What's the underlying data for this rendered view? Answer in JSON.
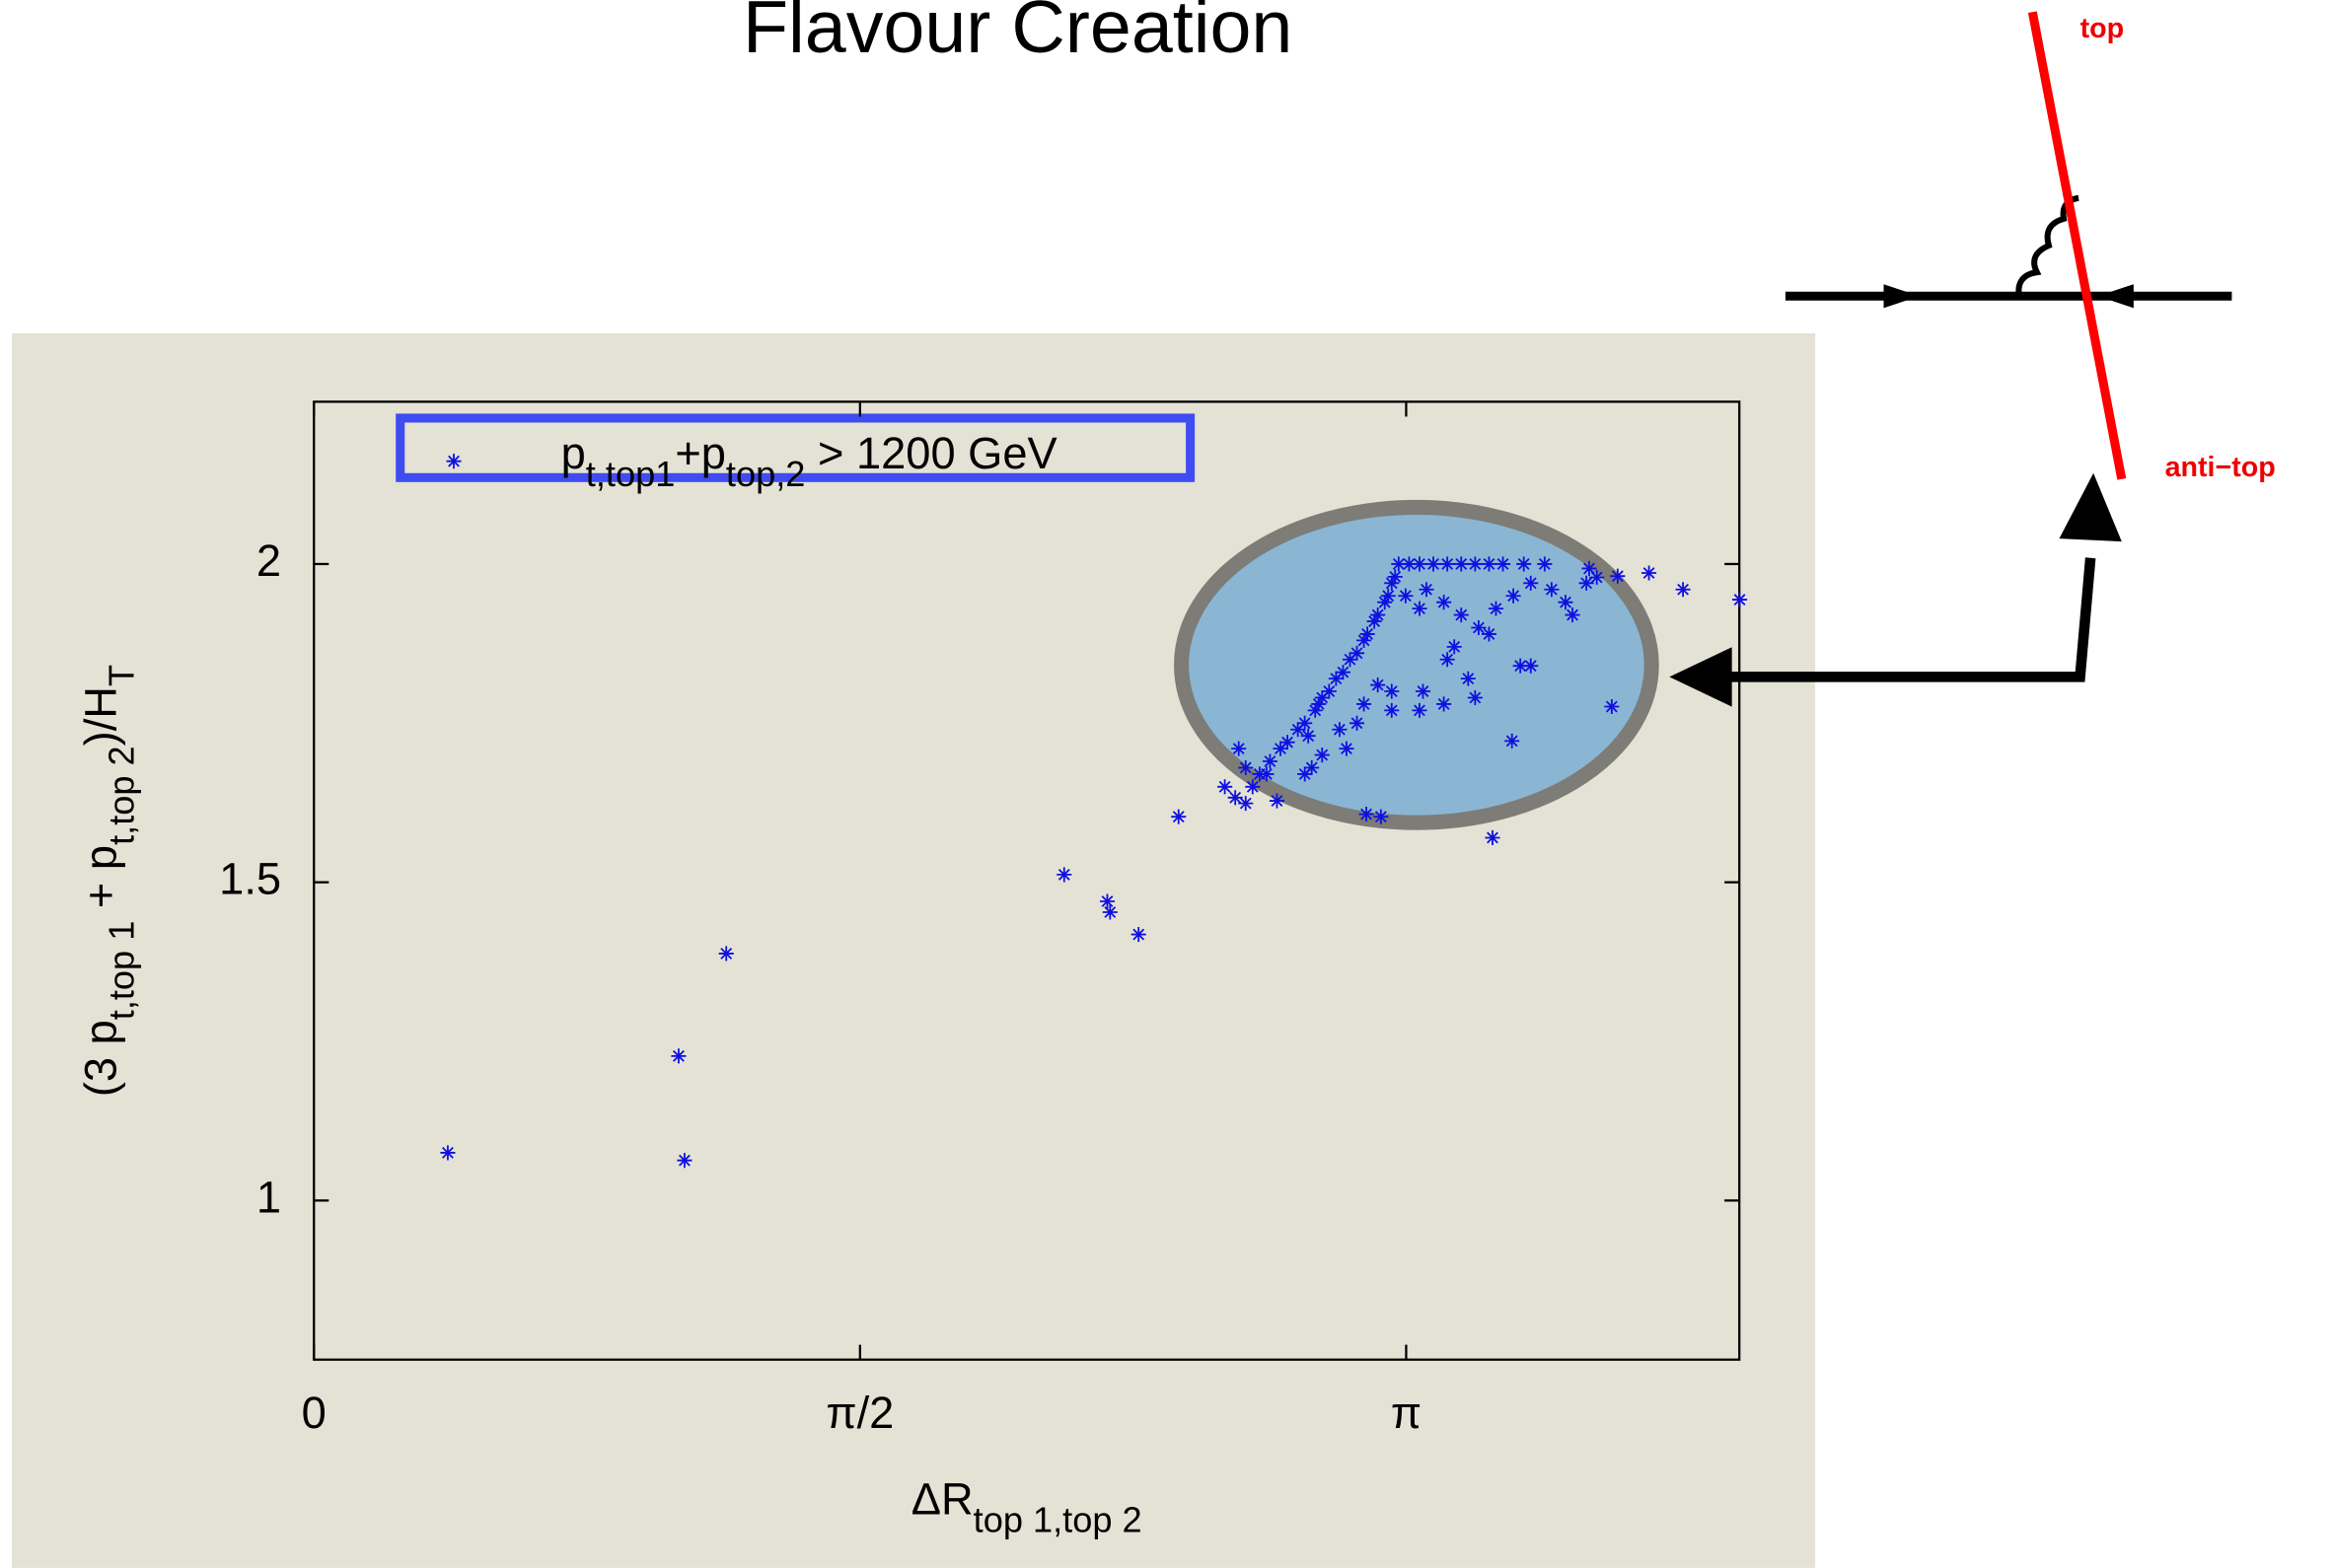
{
  "chart_data": {
    "type": "scatter",
    "title": "Flavour Creation",
    "xlabel": [
      {
        "text": "ΔR"
      },
      {
        "text": "top 1,top 2",
        "sub": true
      }
    ],
    "ylabel": [
      {
        "text": "(3 p"
      },
      {
        "text": "t,top 1",
        "sub": true
      },
      {
        "text": " + p"
      },
      {
        "text": "t,top 2",
        "sub": true
      },
      {
        "text": ")/H"
      },
      {
        "text": "T",
        "sub": true
      }
    ],
    "xlim": [
      0,
      4.1
    ],
    "ylim": [
      0.75,
      2.255
    ],
    "xticks": [
      0,
      {
        "value": 1.5708,
        "label": "π/2"
      },
      {
        "value": 3.1416,
        "label": "π"
      }
    ],
    "yticks": [
      1,
      1.5,
      2
    ],
    "x": [
      0.385,
      1.049,
      1.066,
      1.186,
      2.158,
      2.282,
      2.29,
      2.372,
      2.487,
      2.65,
      2.68,
      2.77,
      3.027,
      3.069,
      3.39,
      3.446,
      3.733,
      3.938,
      4.101,
      3.84,
      3.75,
      3.668,
      3.69,
      2.72,
      2.75,
      2.78,
      2.74,
      2.8,
      2.83,
      2.85,
      2.86,
      2.88,
      2.9,
      2.92,
      2.89,
      2.94,
      2.96,
      2.98,
      3.0,
      3.02,
      3.03,
      3.05,
      3.06,
      3.08,
      3.09,
      3.1,
      3.11,
      3.12,
      3.15,
      3.18,
      3.22,
      3.26,
      3.3,
      3.34,
      3.38,
      3.42,
      3.48,
      3.54,
      3.14,
      3.18,
      3.2,
      3.25,
      3.3,
      3.35,
      3.28,
      3.4,
      3.45,
      3.5,
      3.56,
      3.6,
      3.62,
      3.66,
      3.26,
      3.47,
      3.5,
      3.06,
      3.1,
      3.19,
      3.25,
      3.02,
      3.1,
      3.18,
      2.95,
      2.97,
      3.0,
      2.9,
      2.85,
      2.87,
      2.68,
      2.66,
      2.7,
      2.62,
      3.34,
      3.32,
      3.38
    ],
    "series": [
      {
        "name": [
          {
            "text": "p"
          },
          {
            "text": "t,top1",
            "sub": true
          },
          {
            "text": "+p"
          },
          {
            "text": "top,2",
            "sub": true
          },
          {
            "text": " > 1200 GeV"
          }
        ],
        "color": "#1010e0",
        "values": [
          1.075,
          1.227,
          1.063,
          1.388,
          1.512,
          1.47,
          1.453,
          1.418,
          1.603,
          1.633,
          1.624,
          1.628,
          1.607,
          1.603,
          1.57,
          1.722,
          1.776,
          1.96,
          1.944,
          1.986,
          1.981,
          1.993,
          1.979,
          1.67,
          1.69,
          1.71,
          1.67,
          1.72,
          1.74,
          1.75,
          1.73,
          1.77,
          1.79,
          1.8,
          1.78,
          1.82,
          1.83,
          1.85,
          1.86,
          1.88,
          1.89,
          1.91,
          1.92,
          1.94,
          1.95,
          1.97,
          1.98,
          2.0,
          2.0,
          2.0,
          2.0,
          2.0,
          2.0,
          2.0,
          2.0,
          2.0,
          2.0,
          2.0,
          1.95,
          1.93,
          1.96,
          1.94,
          1.92,
          1.9,
          1.87,
          1.93,
          1.95,
          1.97,
          1.96,
          1.94,
          1.92,
          1.97,
          1.85,
          1.84,
          1.84,
          1.81,
          1.8,
          1.8,
          1.78,
          1.78,
          1.77,
          1.77,
          1.74,
          1.71,
          1.75,
          1.7,
          1.67,
          1.68,
          1.68,
          1.71,
          1.65,
          1.65,
          1.79,
          1.82,
          1.89
        ]
      }
    ]
  },
  "diagram": {
    "top_label": "top",
    "bottom_label": "anti−top"
  }
}
